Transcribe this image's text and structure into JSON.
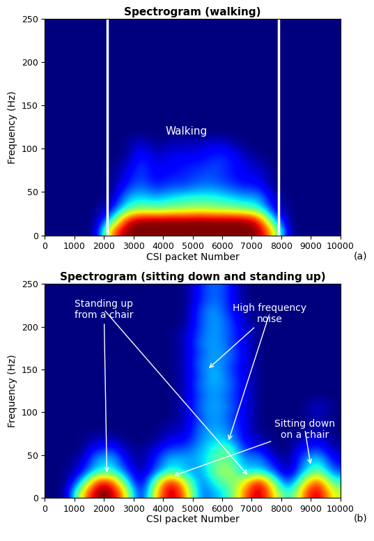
{
  "chart_data": [
    {
      "type": "heatmap",
      "title": "Spectrogram (walking)",
      "panel": "(a)",
      "x_label": "CSI packet Number",
      "y_label": "Frequency (Hz)",
      "xlim": [
        0,
        10000
      ],
      "xticks": [
        0,
        1000,
        2000,
        3000,
        4000,
        5000,
        6000,
        7000,
        8000,
        9000,
        10000
      ],
      "ylim": [
        0,
        250
      ],
      "yticks": [
        0,
        50,
        100,
        150,
        200,
        250
      ],
      "color_range": [
        0,
        1
      ],
      "vlines": [
        2100,
        7900
      ],
      "annotations": [
        {
          "text": "Walking",
          "x": 4800,
          "y": 120,
          "points": []
        }
      ],
      "cells": [
        [
          0,
          0,
          0,
          0,
          0.8,
          1,
          1,
          1,
          1,
          1,
          1,
          1,
          1,
          1,
          1,
          0.7,
          0,
          0,
          0,
          0
        ],
        [
          0,
          0,
          0,
          0,
          0.3,
          0.9,
          1,
          1,
          1,
          1,
          1,
          1,
          1,
          1,
          0.9,
          0.3,
          0,
          0,
          0,
          0
        ],
        [
          0,
          0,
          0,
          0,
          0.1,
          0.4,
          0.5,
          0.45,
          0.5,
          0.5,
          0.55,
          0.5,
          0.5,
          0.45,
          0.4,
          0.1,
          0,
          0,
          0,
          0
        ],
        [
          0,
          0,
          0,
          0,
          0,
          0.3,
          0.35,
          0.3,
          0.35,
          0.4,
          0.4,
          0.4,
          0.35,
          0.3,
          0.3,
          0.05,
          0,
          0,
          0,
          0
        ],
        [
          0,
          0,
          0,
          0,
          0,
          0.15,
          0.25,
          0.15,
          0.2,
          0.2,
          0.25,
          0.25,
          0.2,
          0.15,
          0.15,
          0,
          0,
          0,
          0,
          0
        ],
        [
          0,
          0,
          0,
          0,
          0,
          0.1,
          0.2,
          0.1,
          0.15,
          0.15,
          0.2,
          0.2,
          0.15,
          0.1,
          0.1,
          0,
          0,
          0,
          0,
          0
        ],
        [
          0,
          0,
          0,
          0,
          0,
          0.05,
          0.2,
          0.1,
          0.1,
          0.15,
          0.15,
          0.2,
          0.15,
          0.1,
          0.05,
          0,
          0,
          0,
          0,
          0
        ],
        [
          0,
          0,
          0,
          0,
          0,
          0,
          0.15,
          0.05,
          0.1,
          0.1,
          0.1,
          0.15,
          0.15,
          0.05,
          0,
          0,
          0,
          0,
          0,
          0
        ],
        [
          0,
          0,
          0,
          0,
          0,
          0,
          0.1,
          0,
          0.05,
          0.05,
          0.05,
          0.1,
          0.05,
          0,
          0,
          0,
          0,
          0,
          0,
          0
        ],
        [
          0,
          0,
          0,
          0,
          0,
          0,
          0,
          0,
          0,
          0,
          0,
          0,
          0,
          0,
          0,
          0,
          0,
          0,
          0,
          0
        ],
        [
          0,
          0,
          0,
          0,
          0,
          0,
          0,
          0,
          0,
          0,
          0,
          0,
          0,
          0,
          0,
          0,
          0,
          0,
          0,
          0
        ],
        [
          0,
          0,
          0,
          0,
          0,
          0,
          0,
          0,
          0,
          0,
          0,
          0,
          0,
          0,
          0,
          0,
          0,
          0,
          0,
          0
        ],
        [
          0,
          0,
          0,
          0,
          0,
          0,
          0,
          0,
          0,
          0,
          0,
          0,
          0,
          0,
          0,
          0,
          0,
          0,
          0,
          0
        ],
        [
          0,
          0,
          0,
          0,
          0,
          0,
          0,
          0,
          0,
          0,
          0,
          0,
          0,
          0,
          0,
          0,
          0,
          0,
          0,
          0
        ],
        [
          0,
          0,
          0,
          0,
          0,
          0,
          0,
          0,
          0,
          0,
          0,
          0,
          0,
          0,
          0,
          0,
          0,
          0,
          0,
          0
        ],
        [
          0,
          0,
          0,
          0,
          0,
          0,
          0,
          0,
          0,
          0,
          0,
          0,
          0,
          0,
          0,
          0,
          0,
          0,
          0,
          0
        ],
        [
          0,
          0,
          0,
          0,
          0,
          0,
          0,
          0,
          0,
          0,
          0,
          0,
          0,
          0,
          0,
          0,
          0,
          0,
          0,
          0
        ],
        [
          0,
          0,
          0,
          0,
          0,
          0,
          0,
          0,
          0,
          0,
          0,
          0,
          0,
          0,
          0,
          0,
          0,
          0,
          0,
          0
        ],
        [
          0,
          0,
          0,
          0,
          0,
          0,
          0,
          0,
          0,
          0,
          0,
          0,
          0,
          0,
          0,
          0,
          0,
          0,
          0,
          0
        ],
        [
          0,
          0,
          0,
          0,
          0,
          0,
          0,
          0,
          0,
          0,
          0,
          0,
          0,
          0,
          0,
          0,
          0,
          0,
          0,
          0
        ]
      ]
    },
    {
      "type": "heatmap",
      "title": "Spectrogram (sitting down and standing up)",
      "panel": "(b)",
      "x_label": "CSI packet Number",
      "y_label": "Frequency (Hz)",
      "xlim": [
        0,
        10000
      ],
      "xticks": [
        0,
        1000,
        2000,
        3000,
        4000,
        5000,
        6000,
        7000,
        8000,
        9000,
        10000
      ],
      "ylim": [
        0,
        250
      ],
      "yticks": [
        0,
        50,
        100,
        150,
        200,
        250
      ],
      "color_range": [
        0,
        1
      ],
      "vlines": [],
      "annotations": [
        {
          "text": "Standing up\nfrom a chair",
          "x": 2000,
          "y": 220,
          "points": [
            [
              2100,
              27
            ],
            [
              6900,
              25
            ]
          ]
        },
        {
          "text": "High frequency\nnoise",
          "x": 7600,
          "y": 215,
          "points": [
            [
              5500,
              150
            ],
            [
              6200,
              65
            ]
          ]
        },
        {
          "text": "Sitting down\non a chair",
          "x": 8800,
          "y": 80,
          "points": [
            [
              4300,
              25
            ],
            [
              9000,
              37
            ]
          ]
        }
      ],
      "cells": [
        [
          0,
          0,
          0.7,
          1,
          1,
          0.7,
          0,
          0.7,
          1,
          0.8,
          0.2,
          0.3,
          0.4,
          0.8,
          1,
          0.7,
          0.3,
          0.8,
          1,
          0.6
        ],
        [
          0,
          0,
          0.3,
          0.9,
          0.9,
          0.4,
          0,
          0.5,
          1,
          0.6,
          0.2,
          0.4,
          0.5,
          0.6,
          1,
          0.5,
          0.1,
          0.6,
          0.9,
          0.4
        ],
        [
          0,
          0,
          0.1,
          0.35,
          0.4,
          0.2,
          0,
          0.2,
          0.4,
          0.3,
          0.25,
          0.5,
          0.6,
          0.3,
          0.35,
          0.2,
          0,
          0.3,
          0.5,
          0.2
        ],
        [
          0,
          0,
          0.05,
          0.3,
          0.35,
          0.1,
          0,
          0.15,
          0.35,
          0.3,
          0.3,
          0.45,
          0.5,
          0.25,
          0.3,
          0.1,
          0,
          0.25,
          0.4,
          0.1
        ],
        [
          0,
          0,
          0,
          0.15,
          0.2,
          0.05,
          0,
          0.1,
          0.2,
          0.2,
          0.3,
          0.4,
          0.5,
          0.15,
          0.15,
          0,
          0,
          0.15,
          0.2,
          0.05
        ],
        [
          0,
          0,
          0,
          0.05,
          0.05,
          0,
          0,
          0,
          0.1,
          0.1,
          0.25,
          0.35,
          0.3,
          0.1,
          0.05,
          0,
          0,
          0.05,
          0.1,
          0
        ],
        [
          0,
          0,
          0,
          0,
          0,
          0,
          0,
          0,
          0.05,
          0.05,
          0.25,
          0.3,
          0.25,
          0.1,
          0,
          0,
          0,
          0,
          0.05,
          0
        ],
        [
          0,
          0,
          0,
          0,
          0,
          0,
          0,
          0,
          0,
          0.05,
          0.2,
          0.3,
          0.2,
          0.1,
          0,
          0,
          0,
          0,
          0.05,
          0
        ],
        [
          0,
          0,
          0,
          0,
          0,
          0,
          0,
          0,
          0,
          0.05,
          0.25,
          0.3,
          0.25,
          0.1,
          0,
          0,
          0,
          0,
          0.1,
          0
        ],
        [
          0,
          0,
          0,
          0,
          0,
          0,
          0,
          0,
          0,
          0.05,
          0.2,
          0.3,
          0.2,
          0.1,
          0,
          0,
          0,
          0,
          0,
          0
        ],
        [
          0,
          0,
          0,
          0,
          0,
          0,
          0,
          0,
          0,
          0.05,
          0.25,
          0.3,
          0.25,
          0.1,
          0,
          0,
          0,
          0,
          0,
          0
        ],
        [
          0,
          0,
          0,
          0,
          0,
          0,
          0,
          0,
          0,
          0.05,
          0.2,
          0.35,
          0.2,
          0.1,
          0,
          0,
          0,
          0,
          0,
          0
        ],
        [
          0,
          0,
          0,
          0,
          0,
          0,
          0,
          0,
          0,
          0.05,
          0.25,
          0.3,
          0.2,
          0.1,
          0,
          0,
          0,
          0,
          0,
          0
        ],
        [
          0,
          0,
          0,
          0,
          0,
          0,
          0,
          0,
          0,
          0.05,
          0.2,
          0.3,
          0.25,
          0.1,
          0,
          0,
          0,
          0,
          0,
          0
        ],
        [
          0,
          0,
          0,
          0,
          0,
          0,
          0,
          0,
          0,
          0.05,
          0.25,
          0.3,
          0.2,
          0.1,
          0,
          0,
          0,
          0,
          0,
          0
        ],
        [
          0,
          0,
          0,
          0,
          0,
          0,
          0,
          0,
          0,
          0.05,
          0.2,
          0.3,
          0.2,
          0.1,
          0,
          0,
          0,
          0,
          0,
          0
        ],
        [
          0,
          0,
          0,
          0,
          0,
          0,
          0,
          0,
          0,
          0,
          0.2,
          0.3,
          0.2,
          0.05,
          0,
          0,
          0,
          0,
          0,
          0
        ],
        [
          0,
          0,
          0,
          0,
          0,
          0,
          0,
          0,
          0,
          0,
          0.2,
          0.3,
          0.15,
          0.05,
          0,
          0,
          0,
          0,
          0,
          0
        ],
        [
          0,
          0,
          0,
          0,
          0,
          0,
          0,
          0,
          0,
          0,
          0.15,
          0.25,
          0.15,
          0,
          0,
          0,
          0,
          0,
          0,
          0
        ],
        [
          0,
          0,
          0,
          0,
          0,
          0,
          0,
          0,
          0,
          0,
          0.15,
          0.25,
          0.15,
          0,
          0,
          0,
          0,
          0,
          0,
          0
        ]
      ]
    }
  ]
}
